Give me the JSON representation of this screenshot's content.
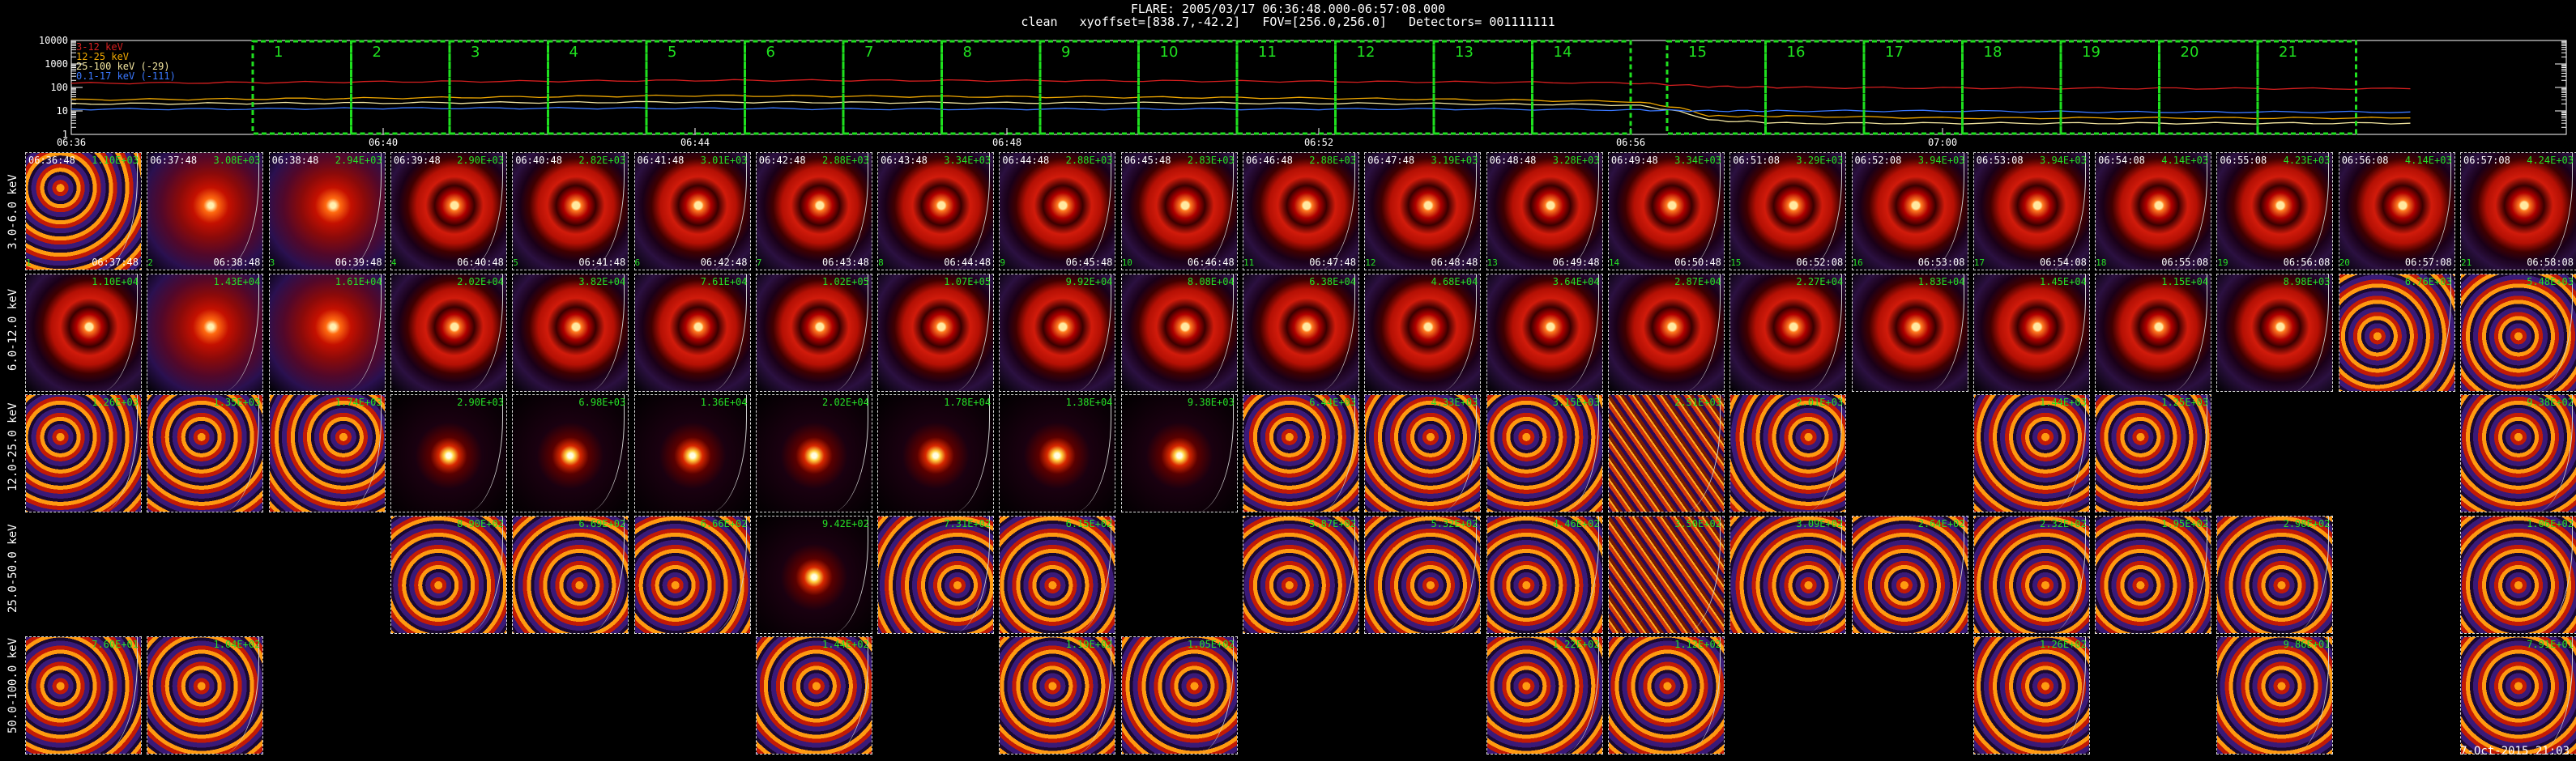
{
  "header": {
    "line1": "FLARE: 2005/03/17 06:36:48.000-06:57:08.000",
    "line2": "clean   xyoffset=[838.7,-42.2]   FOV=[256.0,256.0]   Detectors= 001111111"
  },
  "colors": {
    "band_3_12": "#d61f1f",
    "band_12_25": "#f0a800",
    "band_25_100": "#f3e6a0",
    "band_01_17": "#3a78ff",
    "interval_box": "#1fe01f",
    "label_green": "#26e026"
  },
  "chart_data": [
    {
      "type": "line",
      "title": "",
      "ylabel": "",
      "yscale": "log",
      "ylim": [
        1,
        10000
      ],
      "yticks": [
        "1",
        "10",
        "100",
        "1000",
        "10000"
      ],
      "xticks": [
        "06:36",
        "06:40",
        "06:44",
        "06:48",
        "06:52",
        "06:56",
        "07:00"
      ],
      "legend": [
        {
          "label": "3-12 keV",
          "color": "#d61f1f"
        },
        {
          "label": "12-25 keV",
          "color": "#f0a800"
        },
        {
          "label": "25-100 keV (-29)",
          "color": "#f3e6a0"
        },
        {
          "label": "0.1-17 keV (-111)",
          "color": "#3a78ff"
        }
      ],
      "legend_position": "top-left",
      "x_minutes": [
        0,
        2,
        4,
        6,
        8,
        10,
        12,
        14,
        16,
        18,
        20,
        21,
        22,
        24,
        26,
        28,
        30
      ],
      "series": [
        {
          "name": "3-12 keV",
          "values": [
            150,
            160,
            175,
            185,
            200,
            200,
            195,
            190,
            180,
            170,
            155,
            110,
            100,
            95,
            92,
            90,
            88
          ]
        },
        {
          "name": "12-25 keV",
          "values": [
            30,
            32,
            35,
            40,
            45,
            42,
            40,
            38,
            35,
            30,
            25,
            6,
            6,
            5,
            5,
            5,
            5
          ]
        },
        {
          "name": "25-100 keV (-29)",
          "values": [
            20,
            21,
            22,
            23,
            24,
            23,
            22,
            22,
            21,
            20,
            18,
            4,
            3,
            3,
            3,
            3,
            3
          ]
        },
        {
          "name": "0.1-17 keV (-111)",
          "values": [
            12,
            12,
            13,
            13,
            13,
            12,
            12,
            12,
            12,
            12,
            11,
            10,
            10,
            10,
            9,
            9,
            9
          ]
        }
      ],
      "intervals": [
        "1",
        "2",
        "3",
        "4",
        "5",
        "6",
        "7",
        "8",
        "9",
        "10",
        "11",
        "12",
        "13",
        "14",
        "15",
        "16",
        "17",
        "18",
        "19",
        "20",
        "21"
      ]
    },
    {
      "type": "table",
      "rows": [
        "3.0-6.0 keV",
        "6.0-12.0 keV",
        "12.0-25.0 keV",
        "25.0-50.0 keV",
        "50.0-100.0 keV"
      ],
      "col_start_times": [
        "06:36:48",
        "06:37:48",
        "06:38:48",
        "06:39:48",
        "06:40:48",
        "06:41:48",
        "06:42:48",
        "06:43:48",
        "06:44:48",
        "06:45:48",
        "06:46:48",
        "06:47:48",
        "06:48:48",
        "06:49:48",
        "06:51:08",
        "06:52:08",
        "06:53:08",
        "06:54:08",
        "06:55:08",
        "06:56:08",
        "06:57:08"
      ],
      "col_end_times": [
        "06:37:48",
        "06:38:48",
        "06:39:48",
        "06:40:48",
        "06:41:48",
        "06:42:48",
        "06:43:48",
        "06:44:48",
        "06:45:48",
        "06:46:48",
        "06:47:48",
        "06:48:48",
        "06:49:48",
        "06:50:48",
        "06:52:08",
        "06:53:08",
        "06:54:08",
        "06:55:08",
        "06:56:08",
        "06:57:08",
        "06:58:08"
      ],
      "flux": [
        [
          "1.10E+03",
          "3.08E+03",
          "2.94E+03",
          "2.90E+03",
          "2.82E+03",
          "3.01E+03",
          "2.88E+03",
          "3.34E+03",
          "2.88E+03",
          "2.83E+03",
          "2.88E+03",
          "3.19E+03",
          "3.28E+03",
          "3.34E+03",
          "3.29E+03",
          "3.94E+03",
          "3.94E+03",
          "4.14E+03",
          "4.23E+03",
          "4.14E+03",
          "4.24E+03"
        ],
        [
          "1.10E+04",
          "1.43E+04",
          "1.61E+04",
          "2.02E+04",
          "3.82E+04",
          "7.61E+04",
          "1.02E+05",
          "1.07E+05",
          "9.92E+04",
          "8.08E+04",
          "6.38E+04",
          "4.68E+04",
          "3.64E+04",
          "2.87E+04",
          "2.27E+04",
          "1.83E+04",
          "1.45E+04",
          "1.15E+04",
          "8.98E+03",
          "6.76E+03",
          "5.48E+03"
        ],
        [
          "1.26E+03",
          "1.35E+03",
          "1.74E+03",
          "2.90E+03",
          "6.98E+03",
          "1.36E+04",
          "2.02E+04",
          "1.78E+04",
          "1.38E+04",
          "9.38E+03",
          "6.44E+03",
          "4.33E+03",
          "3.15E+03",
          "2.51E+03",
          "2.01E+03",
          "",
          "1.44E+03",
          "1.25E+03",
          "",
          "",
          "9.38E+02"
        ],
        [
          "",
          "",
          "",
          "8.90E+02",
          "6.69E+02",
          "6.66E+02",
          "9.42E+02",
          "7.31E+02",
          "6.15E+02",
          "",
          "5.87E+02",
          "5.32E+02",
          "4.46E+02",
          "3.50E+02",
          "3.09E+02",
          "2.64E+02",
          "2.32E+02",
          "1.95E+02",
          "2.98E+02",
          "",
          "1.06E+02"
        ],
        [
          "7.60E+01",
          "1.04E+02",
          "",
          "",
          "",
          "",
          "1.44E+02",
          "",
          "1.19E+02",
          "1.05E+02",
          "",
          "",
          "1.22E+02",
          "1.12E+02",
          "",
          "",
          "1.26E+02",
          "",
          "9.86E+01",
          "",
          "7.91E+01"
        ]
      ],
      "image_type": [
        [
          "noise",
          "loop",
          "loop",
          "ring",
          "ring",
          "ring",
          "ring",
          "ring",
          "ring",
          "ring",
          "ring",
          "ring",
          "ring",
          "ring",
          "ring",
          "ring",
          "ring",
          "ring",
          "ring",
          "ring",
          "ring"
        ],
        [
          "ring",
          "loop",
          "loop",
          "ring",
          "ring",
          "ring",
          "ring",
          "ring",
          "ring",
          "ring",
          "ring",
          "ring",
          "ring",
          "ring",
          "ring",
          "ring",
          "ring",
          "ring",
          "ring",
          "noise",
          "noise"
        ],
        [
          "noise",
          "noise",
          "noise",
          "spot",
          "spot",
          "spot",
          "spot",
          "spot",
          "spot",
          "spot",
          "noise",
          "noise",
          "noise",
          "stripes",
          "noise",
          "",
          "noise",
          "noise",
          "",
          "",
          "noise"
        ],
        [
          "",
          "",
          "",
          "noise",
          "noise",
          "noise",
          "spot",
          "noise",
          "noise",
          "",
          "noise",
          "noise",
          "noise",
          "stripes",
          "noise",
          "noise",
          "noise",
          "noise",
          "noise",
          "",
          "noise"
        ],
        [
          "noise",
          "noise",
          "",
          "",
          "",
          "",
          "noise",
          "",
          "noise",
          "noise",
          "",
          "",
          "noise",
          "noise",
          "",
          "",
          "noise",
          "",
          "noise",
          "",
          "noise"
        ]
      ]
    }
  ],
  "footer": {
    "datestamp": "7-Oct-2015 21:03"
  }
}
